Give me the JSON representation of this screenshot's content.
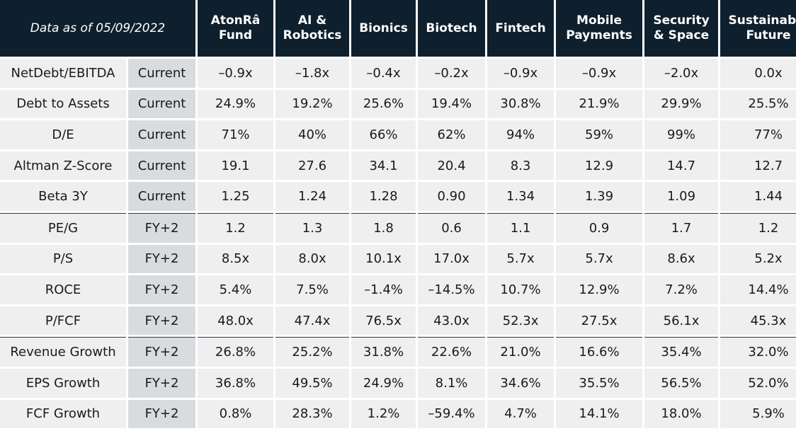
{
  "header": {
    "date_label": "Data as of 05/09/2022",
    "columns": [
      [
        "AtonRâ",
        "Fund"
      ],
      [
        "AI &",
        "Robotics"
      ],
      [
        "Bionics"
      ],
      [
        "Biotech"
      ],
      [
        "Fintech"
      ],
      [
        "Mobile",
        "Payments"
      ],
      [
        "Security",
        "& Space"
      ],
      [
        "Sustainable",
        "Future"
      ]
    ]
  },
  "rows": [
    {
      "metric": "NetDebt/EBITDA",
      "period": "Current",
      "values": [
        "–0.9x",
        "–1.8x",
        "–0.4x",
        "–0.2x",
        "–0.9x",
        "–0.9x",
        "–2.0x",
        "0.0x"
      ]
    },
    {
      "metric": "Debt to Assets",
      "period": "Current",
      "values": [
        "24.9%",
        "19.2%",
        "25.6%",
        "19.4%",
        "30.8%",
        "21.9%",
        "29.9%",
        "25.5%"
      ]
    },
    {
      "metric": "D/E",
      "period": "Current",
      "values": [
        "71%",
        "40%",
        "66%",
        "62%",
        "94%",
        "59%",
        "99%",
        "77%"
      ]
    },
    {
      "metric": "Altman Z-Score",
      "period": "Current",
      "values": [
        "19.1",
        "27.6",
        "34.1",
        "20.4",
        "8.3",
        "12.9",
        "14.7",
        "12.7"
      ]
    },
    {
      "metric": "Beta 3Y",
      "period": "Current",
      "values": [
        "1.25",
        "1.24",
        "1.28",
        "0.90",
        "1.34",
        "1.39",
        "1.09",
        "1.44"
      ]
    },
    {
      "metric": "PE/G",
      "period": "FY+2",
      "values": [
        "1.2",
        "1.3",
        "1.8",
        "0.6",
        "1.1",
        "0.9",
        "1.7",
        "1.2"
      ]
    },
    {
      "metric": "P/S",
      "period": "FY+2",
      "values": [
        "8.5x",
        "8.0x",
        "10.1x",
        "17.0x",
        "5.7x",
        "5.7x",
        "8.6x",
        "5.2x"
      ]
    },
    {
      "metric": "ROCE",
      "period": "FY+2",
      "values": [
        "5.4%",
        "7.5%",
        "–1.4%",
        "–14.5%",
        "10.7%",
        "12.9%",
        "7.2%",
        "14.4%"
      ]
    },
    {
      "metric": "P/FCF",
      "period": "FY+2",
      "values": [
        "48.0x",
        "47.4x",
        "76.5x",
        "43.0x",
        "52.3x",
        "27.5x",
        "56.1x",
        "45.3x"
      ]
    },
    {
      "metric": "Revenue Growth",
      "period": "FY+2",
      "values": [
        "26.8%",
        "25.2%",
        "31.8%",
        "22.6%",
        "21.0%",
        "16.6%",
        "35.4%",
        "32.0%"
      ]
    },
    {
      "metric": "EPS Growth",
      "period": "FY+2",
      "values": [
        "36.8%",
        "49.5%",
        "24.9%",
        "8.1%",
        "34.6%",
        "35.5%",
        "56.5%",
        "52.0%"
      ]
    },
    {
      "metric": "FCF Growth",
      "period": "FY+2",
      "values": [
        "0.8%",
        "28.3%",
        "1.2%",
        "–59.4%",
        "4.7%",
        "14.1%",
        "18.0%",
        "5.9%"
      ]
    }
  ],
  "section_breaks_before": [
    5,
    9
  ],
  "colors": {
    "header_bg": "#0e1f2d",
    "cell_bg": "#efefef",
    "period_bg": "#d9dcdf",
    "divider": "#2b3a47"
  }
}
